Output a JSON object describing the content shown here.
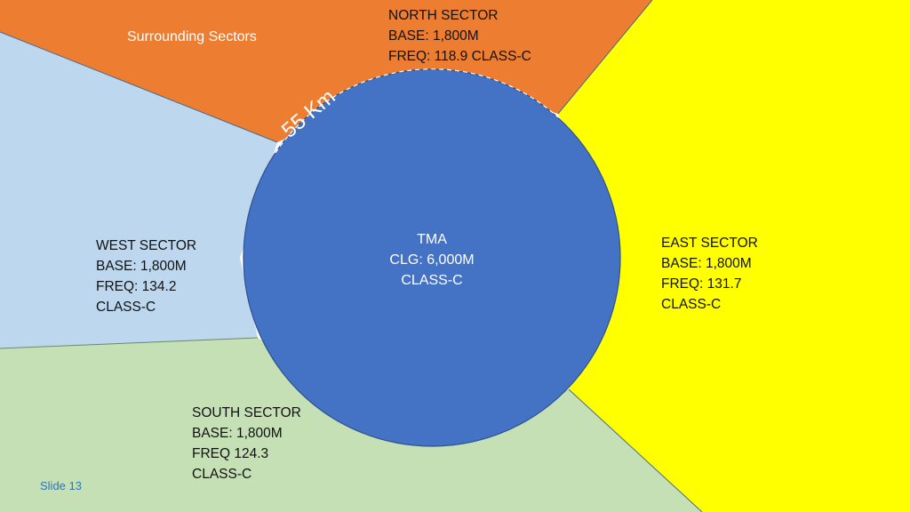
{
  "colors": {
    "north": "#ed7d31",
    "west": "#bdd7ee",
    "east": "#ffff00",
    "south": "#c5e0b4",
    "tma": "#4472c4",
    "slide_number": "#2e75b6"
  },
  "title": "Surrounding Sectors",
  "sectors": {
    "north": {
      "name": "NORTH SECTOR",
      "base": "BASE: 1,800M",
      "freq": "FREQ: 118.9 CLASS-C"
    },
    "west": {
      "name": "WEST SECTOR",
      "base": "BASE: 1,800M",
      "freq": "FREQ: 134.2",
      "class": "CLASS-C"
    },
    "east": {
      "name": "EAST SECTOR",
      "base": "BASE: 1,800M",
      "freq": "FREQ: 131.7",
      "class": "CLASS-C"
    },
    "south": {
      "name": "SOUTH SECTOR",
      "base": "BASE: 1,800M",
      "freq": "FREQ 124.3",
      "class": "CLASS-C"
    }
  },
  "tma": {
    "name": "TMA",
    "ceiling": "CLG: 6,000M",
    "class": "CLASS-C"
  },
  "radius_label": "55 Km",
  "slide_number": "Slide 13"
}
